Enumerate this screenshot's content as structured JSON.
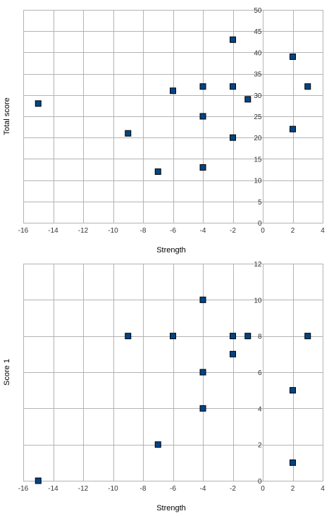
{
  "chart_data": [
    {
      "type": "scatter",
      "xlabel": "Strength",
      "ylabel": "Total score",
      "xlim": [
        -16,
        4
      ],
      "ylim": [
        0,
        50
      ],
      "x_ticks": [
        -16,
        -14,
        -12,
        -10,
        -8,
        -6,
        -4,
        -2,
        0,
        2,
        4
      ],
      "y_ticks": [
        0,
        5,
        10,
        15,
        20,
        25,
        30,
        35,
        40,
        45,
        50
      ],
      "grid": true,
      "marker_color": "#004586",
      "points": [
        {
          "x": -15,
          "y": 28
        },
        {
          "x": -9,
          "y": 21
        },
        {
          "x": -7,
          "y": 12
        },
        {
          "x": -6,
          "y": 31
        },
        {
          "x": -4,
          "y": 32
        },
        {
          "x": -4,
          "y": 25
        },
        {
          "x": -4,
          "y": 13
        },
        {
          "x": -2,
          "y": 43
        },
        {
          "x": -2,
          "y": 32
        },
        {
          "x": -2,
          "y": 20
        },
        {
          "x": -1,
          "y": 29
        },
        {
          "x": 2,
          "y": 39
        },
        {
          "x": 2,
          "y": 22
        },
        {
          "x": 3,
          "y": 32
        }
      ]
    },
    {
      "type": "scatter",
      "xlabel": "Strength",
      "ylabel": "Score 1",
      "xlim": [
        -16,
        4
      ],
      "ylim": [
        0,
        12
      ],
      "x_ticks": [
        -16,
        -14,
        -12,
        -10,
        -8,
        -6,
        -4,
        -2,
        0,
        2,
        4
      ],
      "y_ticks": [
        0,
        2,
        4,
        6,
        8,
        10,
        12
      ],
      "grid": true,
      "marker_color": "#004586",
      "points": [
        {
          "x": -15,
          "y": 0
        },
        {
          "x": -9,
          "y": 8
        },
        {
          "x": -7,
          "y": 2
        },
        {
          "x": -6,
          "y": 8
        },
        {
          "x": -4,
          "y": 10
        },
        {
          "x": -4,
          "y": 6
        },
        {
          "x": -4,
          "y": 4
        },
        {
          "x": -2,
          "y": 8
        },
        {
          "x": -2,
          "y": 7
        },
        {
          "x": -1,
          "y": 8
        },
        {
          "x": 2,
          "y": 5
        },
        {
          "x": 2,
          "y": 1
        },
        {
          "x": 3,
          "y": 8
        }
      ]
    }
  ]
}
